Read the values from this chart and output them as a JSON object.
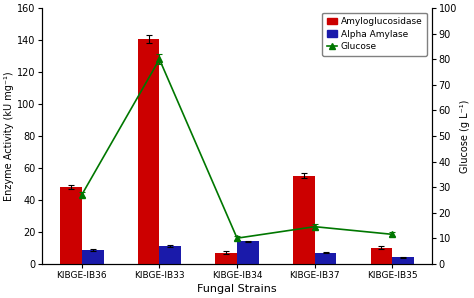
{
  "strains": [
    "KIBGE-IB36",
    "KIBGE-IB33",
    "KIBGE-IB34",
    "KIBGE-IB37",
    "KIBGE-IB35"
  ],
  "amyloglucosidase": [
    48,
    141,
    7,
    55,
    10
  ],
  "amyloglucosidase_err": [
    1.5,
    2.5,
    1.0,
    1.5,
    1.0
  ],
  "alpha_amylase": [
    8.5,
    11,
    14,
    7,
    4
  ],
  "alpha_amylase_err": [
    0.5,
    0.5,
    0.5,
    0.5,
    0.3
  ],
  "glucose": [
    27,
    80,
    10,
    14.5,
    11.5
  ],
  "glucose_err": [
    1.0,
    2.0,
    0.8,
    1.0,
    0.8
  ],
  "bar_color_amylo": "#cc0000",
  "bar_color_alpha": "#1a1aaa",
  "line_color_glucose": "#007700",
  "marker_glucose": "^",
  "ylabel_left": "Enzyme Activity (kU mg⁻¹)",
  "ylabel_right": "Glucose (g L⁻¹)",
  "xlabel": "Fungal Strains",
  "ylim_left": [
    0,
    160
  ],
  "ylim_right": [
    0,
    100
  ],
  "yticks_left": [
    0,
    20,
    40,
    60,
    80,
    100,
    120,
    140,
    160
  ],
  "yticks_right": [
    0,
    10,
    20,
    30,
    40,
    50,
    60,
    70,
    80,
    90,
    100
  ],
  "legend_labels": [
    "Amyloglucosidase",
    "Alpha Amylase",
    "Glucose"
  ],
  "bar_width": 0.28,
  "figsize": [
    4.74,
    2.98
  ],
  "dpi": 100,
  "background_color": "#ffffff"
}
